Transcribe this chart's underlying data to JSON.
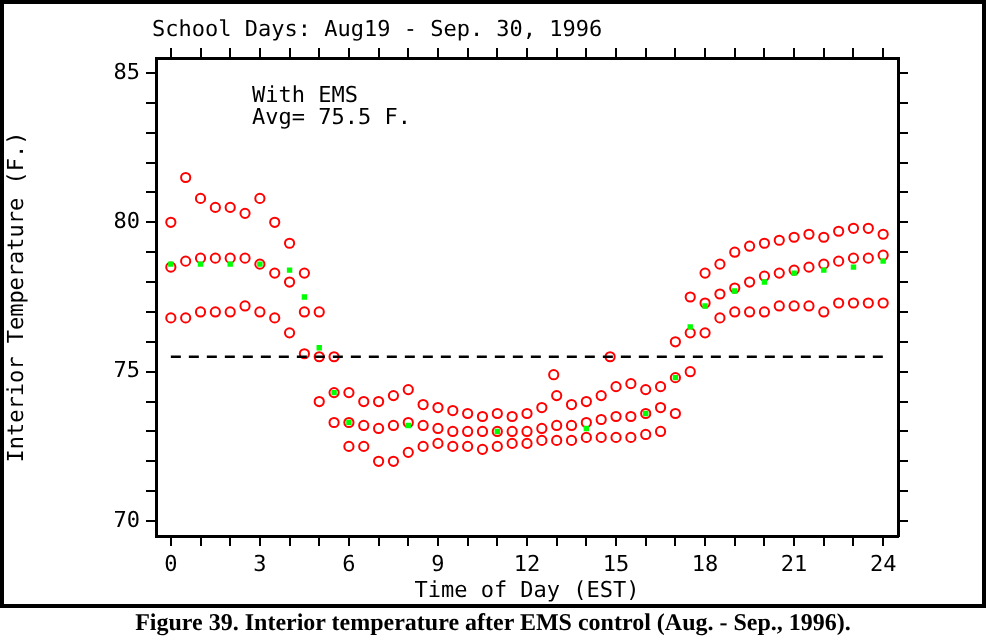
{
  "chart_data": {
    "type": "scatter",
    "title": "School Days: Aug19 - Sep. 30, 1996",
    "xlabel": "Time of Day (EST)",
    "ylabel": "Interior Temperature (F.)",
    "annotations": [
      "With EMS",
      "Avg= 75.5 F.",
      "Figure 39.  Interior temperature after EMS control (Aug. - Sep., 1996)."
    ],
    "xlim": [
      -0.5,
      24.5
    ],
    "ylim": [
      69.5,
      85.5
    ],
    "xticks": [
      0,
      {
        "value": 1,
        "label": null
      },
      {
        "value": 2,
        "label": null
      },
      3,
      {
        "value": 4,
        "label": null
      },
      {
        "value": 5,
        "label": null
      },
      6,
      {
        "value": 7,
        "label": null
      },
      {
        "value": 8,
        "label": null
      },
      9,
      {
        "value": 10,
        "label": null
      },
      {
        "value": 11,
        "label": null
      },
      12,
      {
        "value": 13,
        "label": null
      },
      {
        "value": 14,
        "label": null
      },
      15,
      {
        "value": 16,
        "label": null
      },
      {
        "value": 17,
        "label": null
      },
      18,
      {
        "value": 19,
        "label": null
      },
      {
        "value": 20,
        "label": null
      },
      21,
      {
        "value": 22,
        "label": null
      },
      {
        "value": 23,
        "label": null
      },
      24
    ],
    "yticks": [
      70,
      {
        "value": 71,
        "label": null
      },
      {
        "value": 72,
        "label": null
      },
      {
        "value": 73,
        "label": null
      },
      {
        "value": 74,
        "label": null
      },
      75,
      {
        "value": 76,
        "label": null
      },
      {
        "value": 77,
        "label": null
      },
      {
        "value": 78,
        "label": null
      },
      {
        "value": 79,
        "label": null
      },
      80,
      {
        "value": 81,
        "label": null
      },
      {
        "value": 82,
        "label": null
      },
      {
        "value": 83,
        "label": null
      },
      {
        "value": 84,
        "label": null
      },
      85
    ],
    "ref_lines": [
      {
        "axis": "y",
        "value": 75.5,
        "color": "#000000",
        "line_style": "dashed"
      }
    ],
    "grid": false,
    "legend": false,
    "marker": "circle",
    "series": [
      {
        "color": "#ff0000",
        "x": [
          0,
          0,
          0,
          0.5,
          0.5,
          0.5,
          1,
          1,
          1,
          1.5,
          1.5,
          1.5,
          2,
          2,
          2,
          2.5,
          2.5,
          2.5,
          3,
          3,
          3,
          3.5,
          3.5,
          3.5,
          4,
          4,
          4,
          4.5,
          4.5,
          4.5,
          5,
          5,
          5,
          5.5,
          5.5,
          5.5,
          6,
          6,
          6,
          6.5,
          6.5,
          6.5,
          7,
          7,
          7,
          7.5,
          7.5,
          7.5,
          8,
          8,
          8,
          8.5,
          8.5,
          8.5,
          9,
          9,
          9,
          9.5,
          9.5,
          9.5,
          10,
          10,
          10,
          10.5,
          10.5,
          10.5,
          11,
          11,
          11,
          11.5,
          11.5,
          11.5,
          12,
          12,
          12,
          12.5,
          12.5,
          12.5,
          12.9,
          13,
          13,
          13,
          13.5,
          13.5,
          13.5,
          14,
          14,
          14,
          14.5,
          14.5,
          14.5,
          14.8,
          15,
          15,
          15,
          15.5,
          15.5,
          15.5,
          16,
          16,
          16,
          16.5,
          16.5,
          16.5,
          17,
          17,
          17,
          17.5,
          17.5,
          17.5,
          18,
          18,
          18,
          18.5,
          18.5,
          18.5,
          19,
          19,
          19,
          19.5,
          19.5,
          19.5,
          20,
          20,
          20,
          20.5,
          20.5,
          20.5,
          21,
          21,
          21,
          21.5,
          21.5,
          21.5,
          22,
          22,
          22,
          22.5,
          22.5,
          22.5,
          23,
          23,
          23,
          23.5,
          23.5,
          23.5,
          24,
          24,
          24
        ],
        "values": [
          76.8,
          78.5,
          80.0,
          76.8,
          78.7,
          81.5,
          77,
          78.8,
          80.8,
          77,
          78.8,
          80.5,
          77,
          78.8,
          80.5,
          77.2,
          78.8,
          80.3,
          77,
          78.6,
          80.8,
          76.8,
          78.3,
          80.0,
          76.3,
          78,
          79.3,
          75.6,
          77,
          78.3,
          74,
          75.5,
          77,
          73.3,
          74.3,
          75.5,
          72.5,
          73.3,
          74.3,
          72.5,
          73.2,
          74,
          72,
          73.1,
          74,
          72,
          73.2,
          74.2,
          72.3,
          73.3,
          74.4,
          72.5,
          73.2,
          73.9,
          72.6,
          73.1,
          73.8,
          72.5,
          73,
          73.7,
          72.5,
          73,
          73.6,
          72.4,
          73,
          73.5,
          72.5,
          73,
          73.6,
          72.6,
          73,
          73.5,
          72.6,
          73,
          73.6,
          72.7,
          73.1,
          73.8,
          74.9,
          72.7,
          73.2,
          74.2,
          72.7,
          73.2,
          73.9,
          72.8,
          73.3,
          74,
          72.8,
          73.4,
          74.2,
          75.5,
          72.8,
          73.5,
          74.5,
          72.8,
          73.5,
          74.6,
          72.9,
          73.6,
          74.4,
          73,
          73.8,
          74.5,
          73.6,
          74.8,
          76,
          75,
          76.3,
          77.5,
          76.3,
          77.3,
          78.3,
          76.8,
          77.6,
          78.6,
          77,
          77.8,
          79,
          77,
          78,
          79.2,
          77,
          78.2,
          79.3,
          77.2,
          78.3,
          79.4,
          77.2,
          78.4,
          79.5,
          77.2,
          78.5,
          79.6,
          77,
          78.6,
          79.5,
          77.3,
          78.7,
          79.7,
          77.3,
          78.8,
          79.8,
          77.3,
          78.8,
          79.8,
          77.3,
          78.9,
          79.6
        ]
      },
      {
        "color": "#00ff00",
        "marker": "square",
        "x": [
          0,
          1,
          2,
          3,
          4,
          4.5,
          5,
          5.5,
          6,
          8,
          11,
          14,
          16,
          17,
          17.5,
          18,
          19,
          20,
          21,
          22,
          23,
          24
        ],
        "values": [
          78.6,
          78.6,
          78.6,
          78.6,
          78.4,
          77.5,
          75.8,
          74.3,
          73.3,
          73.2,
          73.0,
          73.1,
          73.6,
          74.8,
          76.5,
          77.2,
          77.7,
          78.0,
          78.3,
          78.4,
          78.5,
          78.7
        ]
      }
    ]
  }
}
